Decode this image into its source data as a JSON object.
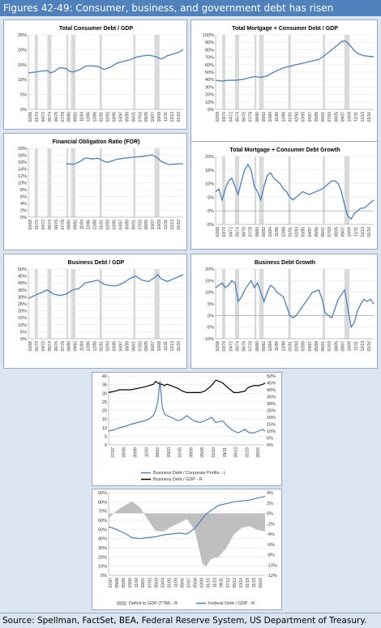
{
  "header": {
    "title": "Figures 42-49: Consumer, business, and government debt has risen"
  },
  "footer": {
    "source": "Source: Spellman, FactSet, BEA, Federal Reserve System, US Department of Treasury."
  },
  "colors": {
    "header_bg": "#4f81bd",
    "page_bg": "#dbe5f1",
    "line_blue": "#4a7fc1",
    "recession": "#d9d9d9",
    "line_black": "#000000",
    "area_gray": "#bfbfbf"
  },
  "chart_data": [
    {
      "id": "total-consumer-debt-gdp",
      "type": "line",
      "title": "Total Consumer Debt / GDP",
      "y_ticks": [
        "0%",
        "5%",
        "10%",
        "15%",
        "20%",
        "25%"
      ],
      "ylim": [
        0,
        25
      ],
      "x_ticks": [
        "02/68",
        "01/70",
        "04/72",
        "05/74",
        "06/76",
        "07/78",
        "08/80",
        "09/82",
        "11/84",
        "12/86",
        "12/88",
        "01/91",
        "02/93",
        "03/95",
        "04/97",
        "05/99",
        "06/01",
        "07/03",
        "09/05",
        "10/07",
        "10/09",
        "11/11",
        "12/13",
        "01/16"
      ],
      "x": [
        1968,
        1970,
        1972,
        1974,
        1975,
        1976,
        1978,
        1980,
        1981,
        1982,
        1984,
        1986,
        1988,
        1990,
        1992,
        1994,
        1996,
        1998,
        2000,
        2002,
        2004,
        2006,
        2008,
        2009,
        2010,
        2011,
        2012,
        2014,
        2016,
        2017
      ],
      "series": [
        {
          "values": [
            12.2,
            12.5,
            12.8,
            13.0,
            12.3,
            12.6,
            14.0,
            13.7,
            12.8,
            12.5,
            13.2,
            14.5,
            14.6,
            14.4,
            13.4,
            14.2,
            15.5,
            16.1,
            16.6,
            17.5,
            17.9,
            18.2,
            17.8,
            17.4,
            16.9,
            17.3,
            18.0,
            18.6,
            19.3,
            20.1
          ]
        }
      ],
      "recessions": [
        [
          1970,
          1971
        ],
        [
          1974,
          1975.3
        ],
        [
          1980,
          1980.6
        ],
        [
          1981.5,
          1982.9
        ],
        [
          1990.5,
          1991.3
        ],
        [
          2001.2,
          2001.9
        ],
        [
          2007.9,
          2009.5
        ]
      ]
    },
    {
      "id": "total-mortgage-consumer-debt-gdp",
      "type": "line",
      "title": "Total Mortgage + Consumer Debt / GDP",
      "y_ticks": [
        "0%",
        "10%",
        "20%",
        "30%",
        "40%",
        "50%",
        "60%",
        "70%",
        "80%",
        "90%",
        "100%"
      ],
      "ylim": [
        0,
        100
      ],
      "x_ticks": [
        "02/68",
        "03/70",
        "04/72",
        "05/74",
        "06/76",
        "07/78",
        "08/80",
        "09/82",
        "10/84",
        "11/86",
        "12/88",
        "01/91",
        "02/93",
        "03/95",
        "04/97",
        "05/99",
        "06/01",
        "07/03",
        "08/05",
        "09/07",
        "10/09",
        "11/11",
        "12/13",
        "01/16"
      ],
      "x": [
        1968,
        1970,
        1972,
        1974,
        1976,
        1978,
        1980,
        1982,
        1984,
        1986,
        1988,
        1990,
        1992,
        1994,
        1996,
        1998,
        2000,
        2002,
        2004,
        2006,
        2007,
        2008,
        2009,
        2010,
        2011,
        2012,
        2014,
        2016,
        2017
      ],
      "series": [
        {
          "values": [
            39,
            38,
            39,
            39,
            40,
            42,
            44,
            43,
            45,
            50,
            54,
            57,
            59,
            61,
            63,
            65,
            67,
            73,
            80,
            87,
            91,
            92,
            89,
            84,
            79,
            75,
            72,
            71,
            71
          ]
        }
      ],
      "recessions": [
        [
          1970,
          1971
        ],
        [
          1974,
          1975.3
        ],
        [
          1980,
          1980.6
        ],
        [
          1981.5,
          1982.9
        ],
        [
          1990.5,
          1991.3
        ],
        [
          2001.2,
          2001.9
        ],
        [
          2007.9,
          2009.5
        ]
      ]
    },
    {
      "id": "financial-obligation-ratio",
      "type": "line",
      "title": "Financial Obligation Ratio (FOR)",
      "y_ticks": [
        "0%",
        "2%",
        "4%",
        "6%",
        "8%",
        "10%",
        "12%",
        "14%",
        "16%",
        "18%",
        "20%"
      ],
      "ylim": [
        0,
        20
      ],
      "x_ticks": [
        "02/68",
        "01/70",
        "04/72",
        "05/74",
        "06/76",
        "07/78",
        "08/80",
        "09/82",
        "11/84",
        "12/86",
        "12/88",
        "01/91",
        "02/93",
        "03/95",
        "04/97",
        "05/99",
        "06/01",
        "07/03",
        "09/05",
        "10/07",
        "10/09",
        "11/11",
        "12/13",
        "01/16"
      ],
      "x": [
        1980,
        1981,
        1982,
        1983,
        1984,
        1985,
        1986,
        1987,
        1988,
        1989,
        1990,
        1991,
        1992,
        1993,
        1994,
        1996,
        1998,
        2000,
        2002,
        2004,
        2006,
        2007,
        2008,
        2009,
        2010,
        2011,
        2012,
        2013,
        2014,
        2016,
        2017
      ],
      "series": [
        {
          "values": [
            15.4,
            15.5,
            15.3,
            15.6,
            16.0,
            16.6,
            17.2,
            17.1,
            16.9,
            17.0,
            17.1,
            16.7,
            16.2,
            15.9,
            16.2,
            16.8,
            17.1,
            17.3,
            17.5,
            17.6,
            17.9,
            18.1,
            17.7,
            17.1,
            16.2,
            15.8,
            15.4,
            15.3,
            15.4,
            15.5,
            15.5
          ]
        }
      ],
      "recessions": [
        [
          1970,
          1971
        ],
        [
          1974,
          1975.3
        ],
        [
          1980,
          1980.6
        ],
        [
          1981.5,
          1982.9
        ],
        [
          1990.5,
          1991.3
        ],
        [
          2001.2,
          2001.9
        ],
        [
          2007.9,
          2009.5
        ]
      ]
    },
    {
      "id": "total-mortgage-consumer-debt-growth",
      "type": "line",
      "title": "Total Mortgage + Consumer Debt Growth",
      "y_ticks": [
        "-5%",
        "0%",
        "5%",
        "10%",
        "15%",
        "20%"
      ],
      "ylim": [
        -5,
        20
      ],
      "x_ticks": [
        "02/68",
        "03/70",
        "04/72",
        "05/74",
        "06/76",
        "07/78",
        "08/80",
        "09/82",
        "10/84",
        "11/86",
        "12/88",
        "01/91",
        "02/93",
        "03/95",
        "04/97",
        "05/99",
        "06/01",
        "07/03",
        "08/05",
        "09/07",
        "10/09",
        "11/11",
        "12/13",
        "01/16"
      ],
      "x": [
        1968,
        1969,
        1970,
        1971,
        1972,
        1973,
        1974,
        1975,
        1976,
        1977,
        1978,
        1979,
        1980,
        1981,
        1982,
        1983,
        1984,
        1985,
        1986,
        1987,
        1988,
        1989,
        1990,
        1991,
        1992,
        1993,
        1995,
        1997,
        1999,
        2001,
        2003,
        2004,
        2005,
        2006,
        2007,
        2008,
        2009,
        2010,
        2011,
        2012,
        2013,
        2014,
        2015,
        2016,
        2017
      ],
      "series": [
        {
          "values": [
            7,
            8,
            4,
            8,
            11,
            12,
            9,
            6,
            11,
            15,
            17,
            15,
            9,
            7,
            4,
            9,
            13,
            14,
            12,
            11,
            10,
            8,
            7,
            5,
            4,
            5,
            7,
            6,
            7,
            8,
            10,
            11,
            11,
            10,
            7,
            2,
            -2,
            -3,
            -1,
            0,
            1,
            1,
            2,
            3,
            4
          ]
        }
      ],
      "recessions": [
        [
          1970,
          1971
        ],
        [
          1974,
          1975.3
        ],
        [
          1980,
          1980.6
        ],
        [
          1981.5,
          1982.9
        ],
        [
          1990.5,
          1991.3
        ],
        [
          2001.2,
          2001.9
        ],
        [
          2007.9,
          2009.5
        ]
      ]
    },
    {
      "id": "business-debt-gdp",
      "type": "line",
      "title": "Business Debt / GDP",
      "y_ticks": [
        "0%",
        "5%",
        "10%",
        "15%",
        "20%",
        "25%",
        "30%",
        "35%",
        "40%",
        "45%",
        "50%"
      ],
      "ylim": [
        0,
        50
      ],
      "x_ticks": [
        "02/68",
        "01/70",
        "04/72",
        "05/74",
        "06/76",
        "07/78",
        "08/80",
        "09/82",
        "11/84",
        "12/86",
        "12/88",
        "01/91",
        "02/93",
        "03/95",
        "04/97",
        "05/99",
        "06/01",
        "07/03",
        "09/05",
        "10/07",
        "10/09",
        "11/11",
        "12/13",
        "01/16"
      ],
      "x": [
        1968,
        1970,
        1972,
        1974,
        1976,
        1978,
        1980,
        1982,
        1984,
        1986,
        1988,
        1990,
        1992,
        1994,
        1996,
        1998,
        2000,
        2002,
        2004,
        2006,
        2008,
        2009,
        2010,
        2011,
        2012,
        2014,
        2016,
        2017
      ],
      "series": [
        {
          "values": [
            29,
            31,
            33,
            35,
            32,
            31,
            32,
            35,
            36,
            40,
            41,
            42,
            39,
            38,
            38,
            40,
            43,
            45,
            42,
            41,
            44,
            46,
            43,
            42,
            41,
            43,
            45,
            46
          ]
        }
      ],
      "recessions": [
        [
          1970,
          1971
        ],
        [
          1974,
          1975.3
        ],
        [
          1980,
          1980.6
        ],
        [
          1981.5,
          1982.9
        ],
        [
          1990.5,
          1991.3
        ],
        [
          2001.2,
          2001.9
        ],
        [
          2007.9,
          2009.5
        ]
      ]
    },
    {
      "id": "business-debt-growth",
      "type": "line",
      "title": "Business Debt Growth",
      "y_ticks": [
        "-10%",
        "-5%",
        "0%",
        "5%",
        "10%",
        "15%",
        "20%"
      ],
      "ylim": [
        -10,
        20
      ],
      "x_ticks": [
        "02/68",
        "03/70",
        "04/72",
        "05/74",
        "06/76",
        "07/78",
        "08/80",
        "09/82",
        "10/84",
        "11/86",
        "12/88",
        "01/91",
        "02/93",
        "03/95",
        "04/97",
        "05/99",
        "06/01",
        "07/03",
        "08/05",
        "09/07",
        "10/09",
        "11/11",
        "12/13",
        "01/16"
      ],
      "x": [
        1968,
        1969,
        1970,
        1971,
        1972,
        1973,
        1974,
        1975,
        1976,
        1977,
        1978,
        1979,
        1980,
        1981,
        1982,
        1983,
        1984,
        1985,
        1986,
        1987,
        1988,
        1989,
        1990,
        1991,
        1992,
        1993,
        1995,
        1997,
        1998,
        2000,
        2001,
        2002,
        2003,
        2004,
        2005,
        2006,
        2007,
        2008,
        2009,
        2010,
        2011,
        2012,
        2013,
        2014,
        2015,
        2016,
        2017
      ],
      "series": [
        {
          "values": [
            12,
            13,
            14,
            12,
            13,
            15,
            14,
            6,
            8,
            11,
            13,
            15,
            12,
            14,
            10,
            6,
            10,
            13,
            12,
            10,
            9,
            8,
            4,
            0,
            -1,
            0,
            4,
            8,
            10,
            11,
            7,
            1,
            0,
            -1,
            3,
            7,
            9,
            11,
            3,
            -5,
            -3,
            2,
            5,
            7,
            6,
            7,
            5
          ]
        }
      ],
      "recessions": [
        [
          1970,
          1971
        ],
        [
          1974,
          1975.3
        ],
        [
          1980,
          1980.6
        ],
        [
          1981.5,
          1982.9
        ],
        [
          1990.5,
          1991.3
        ],
        [
          2001.2,
          2001.9
        ],
        [
          2007.9,
          2009.5
        ]
      ]
    },
    {
      "id": "business-debt-profits",
      "type": "line",
      "title": "",
      "y_ticks_left": [
        "0",
        "5",
        "10",
        "15",
        "20",
        "25",
        "30",
        "35",
        "40"
      ],
      "ylim_left": [
        0,
        40
      ],
      "y_ticks_right": [
        "0%",
        "5%",
        "10%",
        "15%",
        "20%",
        "25%",
        "30%",
        "35%",
        "40%",
        "45%",
        "50%"
      ],
      "ylim_right": [
        0,
        50
      ],
      "x_ticks": [
        "07/97",
        "09/99",
        "05/98",
        "11/00",
        "09/02",
        "05/03",
        "01/05",
        "09/06",
        "05/08",
        "01/10",
        "09/11",
        "05/13",
        "01/15",
        "09/16"
      ],
      "x": [
        1947,
        1950,
        1952,
        1955,
        1957,
        1960,
        1963,
        1965,
        1967,
        1968,
        1969,
        1970,
        1971,
        1972,
        1973,
        1975,
        1978,
        1980,
        1982,
        1985,
        1988,
        1990,
        1993,
        1995,
        1998,
        2000,
        2003,
        2005,
        2008,
        2009,
        2010,
        2012,
        2014,
        2016,
        2017
      ],
      "series": [
        {
          "name": "Business Debt / Corporate Profits - L",
          "axis": "left",
          "values": [
            8,
            9,
            10,
            11,
            12,
            13,
            14,
            15,
            17,
            20,
            25,
            37,
            22,
            18,
            17,
            16,
            14,
            15,
            17,
            14,
            13,
            14,
            16,
            13,
            14,
            11,
            8,
            7,
            9,
            8,
            7,
            7,
            8,
            9,
            8
          ]
        },
        {
          "name": "Business Debt / GDP - R",
          "axis": "right",
          "values": [
            38,
            39,
            40,
            40,
            40,
            41,
            42,
            43,
            44,
            46,
            45,
            44,
            44,
            43,
            44,
            43,
            41,
            39,
            38,
            38,
            38,
            39,
            43,
            47,
            45,
            42,
            38,
            38,
            39,
            41,
            42,
            43,
            43,
            44,
            45
          ]
        }
      ],
      "legend": [
        "Business Debt / Corporate Profits - L",
        "Business Debt / GDP - R"
      ]
    },
    {
      "id": "federal-debt-deficit",
      "type": "area",
      "title": "",
      "y_ticks_left": [
        "0%",
        "10%",
        "20%",
        "30%",
        "40%",
        "50%",
        "60%",
        "70%",
        "80%",
        "90%"
      ],
      "ylim_left": [
        0,
        90
      ],
      "y_ticks_right": [
        "-12%",
        "-10%",
        "-8%",
        "-6%",
        "-4%",
        "-2%",
        "0%",
        "2%",
        "4%"
      ],
      "ylim_right": [
        -12,
        4
      ],
      "x_ticks": [
        "07/97",
        "05/98",
        "05/99",
        "03/00",
        "11/00",
        "09/01",
        "07/02",
        "05/03",
        "03/04",
        "01/05",
        "11/05",
        "09/06",
        "07/07",
        "05/08",
        "03/09",
        "01/10",
        "11/10",
        "09/11",
        "07/12",
        "05/13",
        "03/14",
        "01/15",
        "11/15",
        "09/16"
      ],
      "x": [
        1997,
        1998,
        1999,
        2000,
        2001,
        2002,
        2003,
        2004,
        2005,
        2006,
        2007,
        2008,
        2009,
        2009.5,
        2010,
        2010.5,
        2011,
        2012,
        2013,
        2014,
        2015,
        2016,
        2017
      ],
      "series": [
        {
          "name": "Deficit to GDP (TTM) - R",
          "axis": "right",
          "values": [
            -1,
            0.5,
            1.5,
            2.3,
            1.2,
            -1.2,
            -3.4,
            -3.5,
            -2.6,
            -1.9,
            -1.1,
            -3.2,
            -9.8,
            -10.3,
            -9.0,
            -8.6,
            -8.5,
            -6.8,
            -4.1,
            -2.8,
            -2.5,
            -3.2,
            -3.5
          ]
        },
        {
          "name": "Federal Debt / GDP - R",
          "axis": "left",
          "values": [
            53,
            50,
            46,
            41,
            40,
            41,
            42,
            44,
            45,
            46,
            45,
            51,
            62,
            67,
            70,
            73,
            76,
            78,
            80,
            81,
            82,
            84,
            86
          ]
        }
      ],
      "legend": [
        "Deficit to GDP (TTM) - R",
        "Federal Debt / GDP - R"
      ]
    }
  ]
}
